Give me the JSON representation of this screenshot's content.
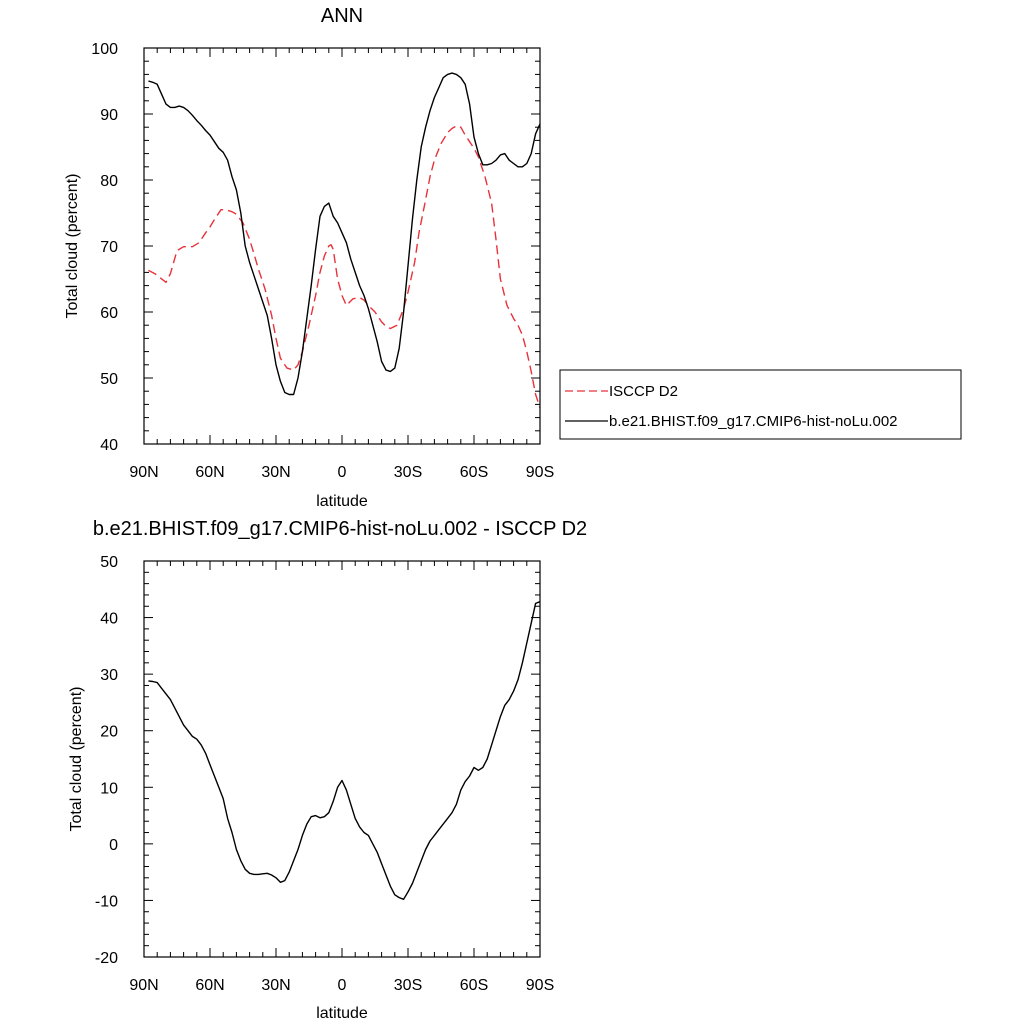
{
  "x_ticks": [
    {
      "value": -90,
      "label": "90N"
    },
    {
      "value": -60,
      "label": "60N"
    },
    {
      "value": -30,
      "label": "30N"
    },
    {
      "value": 0,
      "label": "0"
    },
    {
      "value": 30,
      "label": "30S"
    },
    {
      "value": 60,
      "label": "60S"
    },
    {
      "value": 90,
      "label": "90S"
    }
  ],
  "colors": {
    "obs": "#e8323a",
    "model": "#000000"
  },
  "chart_data": [
    {
      "type": "line",
      "title": "ANN",
      "xlabel": "latitude",
      "ylabel": "Total cloud (percent)",
      "xlim": [
        -90,
        90
      ],
      "ylim": [
        40,
        100
      ],
      "yticks": [
        40,
        50,
        60,
        70,
        80,
        90,
        100
      ],
      "legend_position": "right",
      "series": [
        {
          "name": "ISCCP D2",
          "style": "dashed",
          "x": [
            -88,
            -85,
            -80,
            -78,
            -75,
            -72,
            -68,
            -65,
            -62,
            -60,
            -58,
            -55,
            -53,
            -50,
            -48,
            -45,
            -42,
            -40,
            -38,
            -35,
            -32,
            -30,
            -28,
            -25,
            -22,
            -20,
            -18,
            -15,
            -12,
            -10,
            -8,
            -6,
            -5,
            -4,
            -2,
            0,
            2,
            5,
            8,
            10,
            12,
            15,
            18,
            20,
            22,
            25,
            28,
            30,
            33,
            35,
            38,
            40,
            42,
            45,
            48,
            50,
            52,
            54,
            56,
            58,
            60,
            62,
            65,
            68,
            70,
            72,
            75,
            78,
            80,
            82,
            84,
            86,
            88,
            90
          ],
          "y": [
            66.3,
            65.8,
            64.5,
            65.8,
            69.3,
            69.9,
            69.9,
            70.5,
            72.0,
            72.9,
            74.0,
            75.5,
            75.5,
            75.2,
            74.8,
            73.5,
            71.0,
            68.8,
            66.5,
            63.5,
            59.5,
            56.0,
            53.0,
            51.5,
            51.2,
            52.0,
            54.0,
            58.0,
            62.5,
            66.0,
            68.5,
            70.0,
            70.2,
            69.5,
            65.0,
            62.5,
            61.0,
            62.0,
            62.2,
            61.8,
            61.0,
            60.0,
            58.5,
            57.8,
            57.5,
            58.0,
            60.5,
            63.0,
            67.5,
            72.0,
            77.0,
            80.5,
            83.0,
            85.5,
            87.2,
            87.8,
            88.2,
            88.0,
            86.8,
            85.8,
            84.8,
            83.5,
            80.5,
            76.5,
            71.0,
            65.0,
            61.0,
            59.0,
            58.0,
            56.5,
            54.0,
            51.0,
            47.5,
            45.5
          ]
        },
        {
          "name": "b.e21.BHIST.f09_g17.CMIP6-hist-noLu.002",
          "style": "solid",
          "x": [
            -88,
            -86,
            -84,
            -82,
            -80,
            -78,
            -76,
            -74,
            -72,
            -70,
            -68,
            -66,
            -64,
            -62,
            -60,
            -58,
            -56,
            -54,
            -52,
            -50,
            -48,
            -46,
            -44,
            -42,
            -40,
            -38,
            -36,
            -34,
            -32,
            -30,
            -28,
            -26,
            -24,
            -22,
            -20,
            -18,
            -16,
            -14,
            -12,
            -10,
            -8,
            -6,
            -4,
            -2,
            0,
            2,
            4,
            6,
            8,
            10,
            12,
            14,
            16,
            18,
            20,
            22,
            24,
            26,
            28,
            30,
            32,
            34,
            36,
            38,
            40,
            42,
            44,
            46,
            48,
            50,
            52,
            54,
            56,
            58,
            60,
            62,
            64,
            66,
            68,
            70,
            72,
            74,
            76,
            78,
            80,
            82,
            84,
            86,
            88,
            90
          ],
          "y": [
            95.0,
            94.8,
            94.5,
            93.0,
            91.5,
            91.0,
            91.0,
            91.2,
            91.0,
            90.5,
            89.8,
            89.0,
            88.3,
            87.5,
            86.8,
            85.8,
            84.8,
            84.2,
            83.0,
            80.5,
            78.5,
            75.0,
            70.0,
            67.5,
            65.5,
            63.5,
            61.5,
            59.5,
            56.0,
            52.0,
            49.5,
            47.8,
            47.5,
            47.5,
            50.0,
            54.0,
            59.0,
            64.0,
            69.5,
            74.5,
            76.0,
            76.5,
            74.5,
            73.5,
            72.0,
            70.5,
            68.0,
            66.0,
            64.0,
            62.5,
            60.5,
            58.0,
            55.5,
            52.5,
            51.2,
            51.0,
            51.5,
            54.5,
            60.0,
            67.0,
            74.0,
            80.0,
            85.0,
            88.0,
            90.5,
            92.5,
            94.0,
            95.5,
            96.0,
            96.2,
            96.0,
            95.5,
            94.5,
            91.5,
            86.5,
            84.0,
            82.3,
            82.3,
            82.5,
            83.0,
            83.8,
            84.0,
            83.0,
            82.5,
            82.0,
            82.0,
            82.5,
            84.0,
            87.0,
            88.5
          ]
        }
      ]
    },
    {
      "type": "line",
      "title": "b.e21.BHIST.f09_g17.CMIP6-hist-noLu.002 - ISCCP D2",
      "xlabel": "latitude",
      "ylabel": "Total cloud (percent)",
      "xlim": [
        -90,
        90
      ],
      "ylim": [
        -20,
        50
      ],
      "yticks": [
        -20,
        -10,
        0,
        10,
        20,
        30,
        40,
        50
      ],
      "series": [
        {
          "style": "solid",
          "x": [
            -88,
            -86,
            -84,
            -82,
            -80,
            -78,
            -76,
            -74,
            -72,
            -70,
            -68,
            -66,
            -64,
            -62,
            -60,
            -58,
            -56,
            -54,
            -52,
            -50,
            -48,
            -46,
            -44,
            -42,
            -40,
            -38,
            -36,
            -34,
            -32,
            -30,
            -28,
            -26,
            -24,
            -22,
            -20,
            -18,
            -16,
            -14,
            -12,
            -10,
            -8,
            -6,
            -4,
            -2,
            0,
            2,
            4,
            6,
            8,
            10,
            12,
            14,
            16,
            18,
            20,
            22,
            24,
            26,
            28,
            30,
            32,
            34,
            36,
            38,
            40,
            42,
            44,
            46,
            48,
            50,
            52,
            54,
            56,
            58,
            60,
            62,
            64,
            66,
            68,
            70,
            72,
            74,
            76,
            78,
            80,
            82,
            84,
            86,
            88,
            90
          ],
          "y": [
            28.8,
            28.7,
            28.5,
            27.5,
            26.5,
            25.5,
            24.0,
            22.5,
            21.0,
            20.0,
            19.0,
            18.5,
            17.5,
            16.0,
            14.0,
            12.0,
            10.0,
            8.0,
            4.5,
            2.0,
            -1.0,
            -3.0,
            -4.5,
            -5.2,
            -5.4,
            -5.4,
            -5.3,
            -5.2,
            -5.5,
            -6.0,
            -6.8,
            -6.5,
            -5.0,
            -3.0,
            -1.0,
            1.5,
            3.5,
            4.8,
            5.0,
            4.6,
            4.8,
            5.5,
            7.5,
            10.0,
            11.2,
            9.5,
            7.0,
            4.5,
            3.0,
            2.0,
            1.5,
            0.0,
            -1.5,
            -3.5,
            -5.5,
            -7.5,
            -9.0,
            -9.5,
            -9.8,
            -8.5,
            -7.0,
            -5.0,
            -3.0,
            -1.0,
            0.5,
            1.5,
            2.5,
            3.5,
            4.5,
            5.5,
            7.0,
            9.5,
            11.0,
            12.0,
            13.5,
            13.0,
            13.5,
            15.0,
            17.5,
            20.0,
            22.5,
            24.5,
            25.5,
            27.0,
            29.0,
            32.0,
            35.5,
            39.0,
            42.5,
            42.8
          ]
        }
      ]
    }
  ]
}
